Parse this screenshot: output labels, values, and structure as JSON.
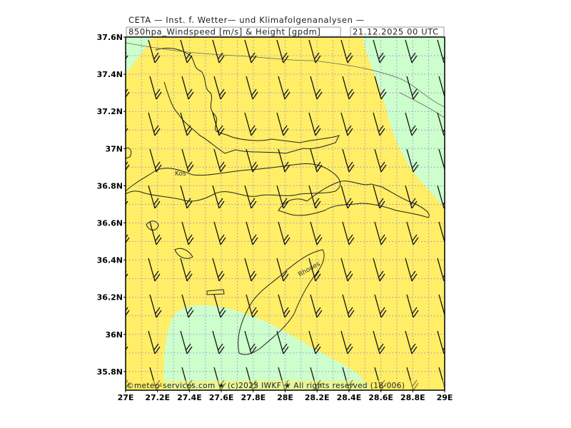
{
  "header": {
    "line1": "CETA — Inst. f. Wetter— und Klimafolgenanalysen —",
    "product": "850hpa_Windspeed [m/s] & Height [gpdm]",
    "time": "21.12.2025 00 UTC"
  },
  "lat_labels": [
    "37.6N",
    "37.4N",
    "37.2N",
    "37N",
    "36.8N",
    "36.6N",
    "36.4N",
    "36.2N",
    "36N",
    "35.8N"
  ],
  "lon_labels": [
    "27E",
    "27.2E",
    "27.4E",
    "27.6E",
    "27.8E",
    "28E",
    "28.2E",
    "28.4E",
    "28.6E",
    "28.8E",
    "29E"
  ],
  "places": [
    "Kos",
    "Rhodes"
  ],
  "footer": "©meteo-services.com ★ (c)2025 IWKF ★ All rights reserved (18-006)"
}
